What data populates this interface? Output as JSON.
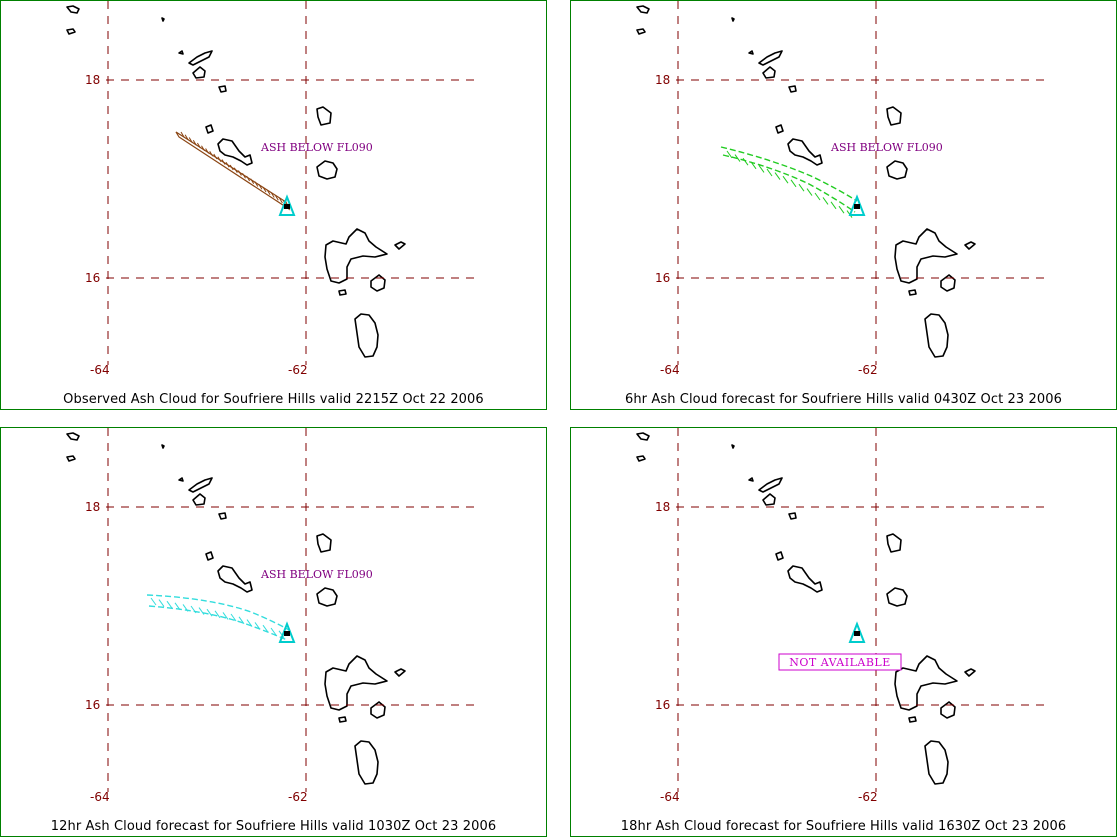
{
  "panels": [
    {
      "caption": "Observed Ash Cloud for Soufriere  Hills valid 2215Z Oct 22 2006",
      "annotation": "ASH BELOW FL090",
      "cloud_color": "#8b4513",
      "cloud_style": "band-straight"
    },
    {
      "caption": "6hr Ash Cloud forecast for Soufriere  Hills valid 0430Z Oct 23 2006",
      "annotation": "ASH BELOW FL090",
      "cloud_color": "#22cc22",
      "cloud_style": "band-curved"
    },
    {
      "caption": "12hr Ash Cloud forecast for Soufriere  Hills valid 1030Z Oct 23 2006",
      "annotation": "ASH BELOW FL090",
      "cloud_color": "#33dddd",
      "cloud_style": "band-wide"
    },
    {
      "caption": "18hr Ash Cloud forecast for Soufriere  Hills valid 1630Z Oct 23 2006",
      "annotation": "NOT AVAILABLE",
      "cloud_color": "",
      "cloud_style": "none"
    }
  ],
  "axes": {
    "lat_labels": [
      "18",
      "16"
    ],
    "lon_labels": [
      "-64",
      "-62"
    ]
  },
  "colors": {
    "border": "#008000",
    "grid": "#800000",
    "coastline": "#000000",
    "volcano": "#00cccc",
    "annotation": "#800080",
    "not_available": "#cc00cc"
  }
}
